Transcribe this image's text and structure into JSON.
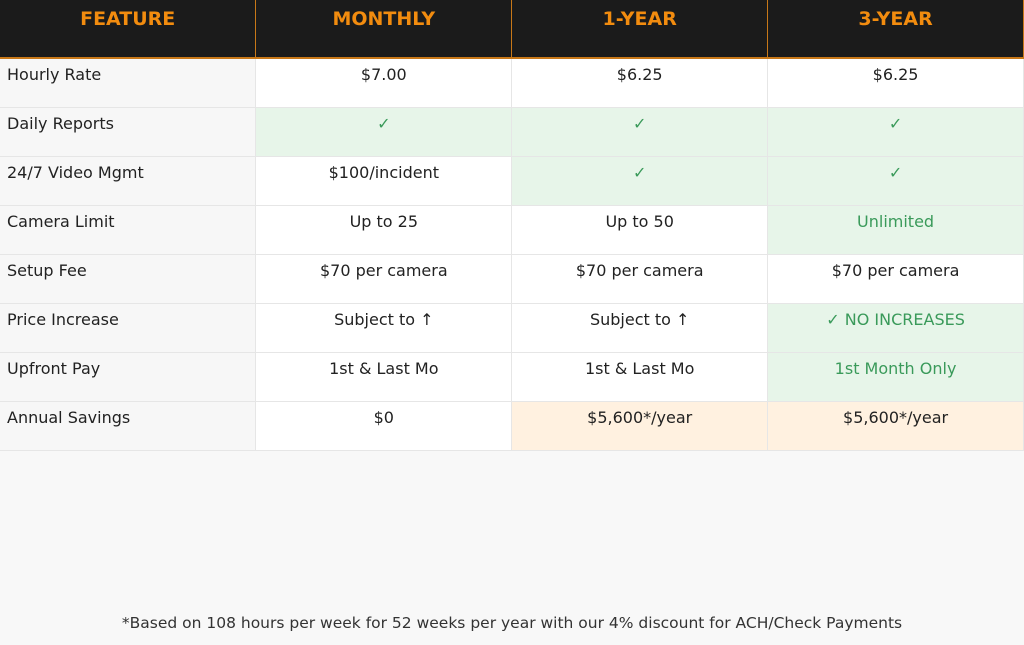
{
  "headers": [
    "FEATURE",
    "MONTHLY",
    "1-YEAR",
    "3-YEAR"
  ],
  "rows": [
    {
      "feature": "Hourly Rate",
      "cells": [
        {
          "text": "$7.00"
        },
        {
          "text": "$6.25"
        },
        {
          "text": "$6.25"
        }
      ]
    },
    {
      "feature": "Daily Reports",
      "cells": [
        {
          "text": "✓",
          "bg": "green",
          "color": "green"
        },
        {
          "text": "✓",
          "bg": "green",
          "color": "green"
        },
        {
          "text": "✓",
          "bg": "green",
          "color": "green"
        }
      ]
    },
    {
      "feature": "24/7 Video Mgmt",
      "cells": [
        {
          "text": "$100/incident"
        },
        {
          "text": "✓",
          "bg": "green",
          "color": "green"
        },
        {
          "text": "✓",
          "bg": "green",
          "color": "green"
        }
      ]
    },
    {
      "feature": "Camera Limit",
      "cells": [
        {
          "text": "Up to 25"
        },
        {
          "text": "Up to 50"
        },
        {
          "text": "Unlimited",
          "bg": "green",
          "color": "green"
        }
      ]
    },
    {
      "feature": "Setup Fee",
      "cells": [
        {
          "text": "$70 per camera"
        },
        {
          "text": "$70 per camera"
        },
        {
          "text": "$70 per camera"
        }
      ]
    },
    {
      "feature": "Price Increase",
      "cells": [
        {
          "text": "Subject to ↑"
        },
        {
          "text": "Subject to ↑"
        },
        {
          "text": "✓ NO INCREASES",
          "bg": "green",
          "color": "green"
        }
      ]
    },
    {
      "feature": "Upfront Pay",
      "cells": [
        {
          "text": "1st & Last Mo"
        },
        {
          "text": "1st & Last Mo"
        },
        {
          "text": "1st Month Only",
          "bg": "green",
          "color": "green"
        }
      ]
    },
    {
      "feature": "Annual Savings",
      "cells": [
        {
          "text": "$0"
        },
        {
          "text": "$5,600*/year",
          "bg": "peach"
        },
        {
          "text": "$5,600*/year",
          "bg": "peach"
        }
      ]
    }
  ],
  "footnote": "*Based on 108 hours per week for 52 weeks per year with our 4% discount for ACH/Check Payments",
  "colors": {
    "header_bg": "#1b1b1b",
    "header_text": "#f28c0f",
    "green_bg": "#e7f5e9",
    "green_text": "#3a9a5a",
    "peach_bg": "#fff1e0"
  }
}
